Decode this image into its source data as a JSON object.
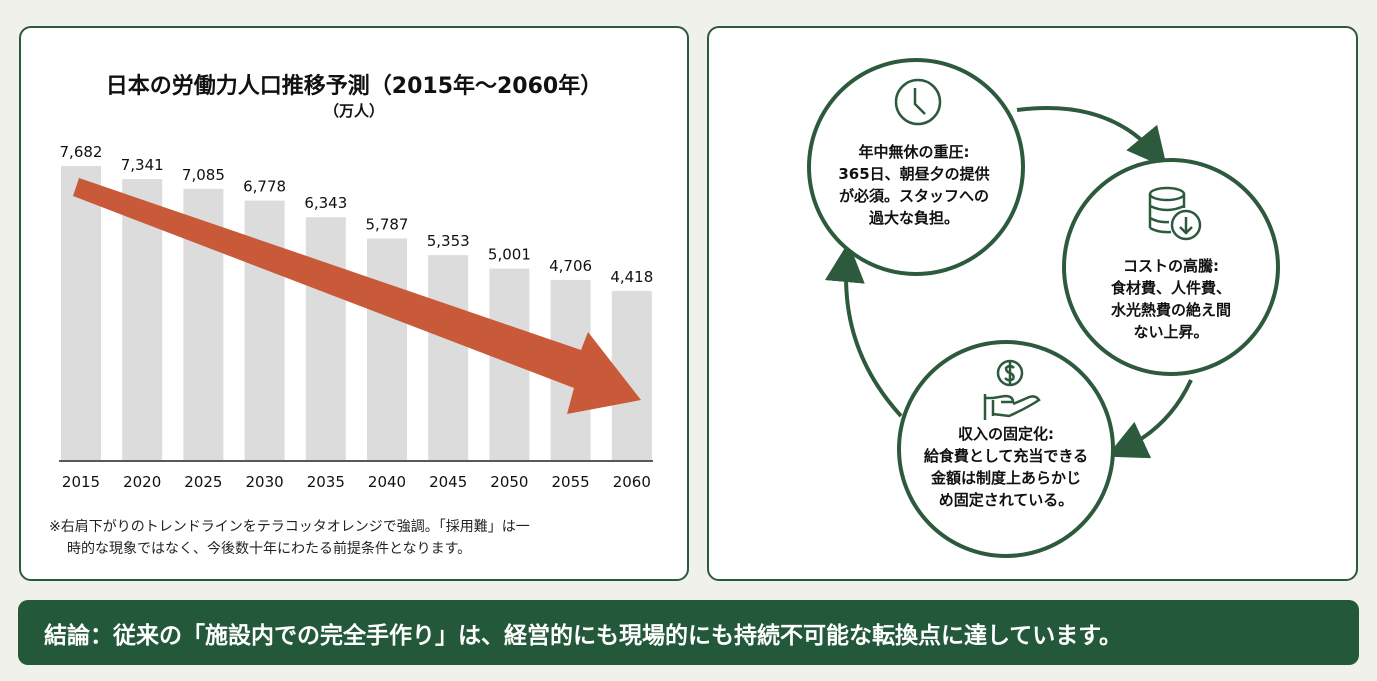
{
  "colors": {
    "accent_green": "#2d5a3d",
    "trend_orange": "#c85a3a",
    "bar_gray": "#dcdcdc",
    "banner": "#23583a"
  },
  "chart_data": {
    "type": "bar",
    "title": "日本の労働力人口推移予測（2015年〜2060年）",
    "subtitle": "（万人）",
    "categories": [
      "2015",
      "2020",
      "2025",
      "2030",
      "2035",
      "2040",
      "2045",
      "2050",
      "2055",
      "2060"
    ],
    "values": [
      7682,
      7341,
      7085,
      6778,
      6343,
      5787,
      5353,
      5001,
      4706,
      4418
    ],
    "data_labels": [
      "7,682",
      "7,341",
      "7,085",
      "6,778",
      "6,343",
      "5,787",
      "5,353",
      "5,001",
      "4,706",
      "4,418"
    ],
    "ylim": [
      0,
      7682
    ],
    "grid": false,
    "trend_arrow": "downward, terracotta orange"
  },
  "note": {
    "line1": "※右肩下がりのトレンドラインをテラコッタオレンジで強調。「採用難」は一",
    "line2": "時的な現象ではなく、今後数十年にわたる前提条件となります。"
  },
  "cycle": [
    {
      "icon": "clock-icon",
      "title": "年中無休の重圧:",
      "lines": [
        "365日、朝昼夕の提供",
        "が必須。スタッフへの",
        "過大な負担。"
      ]
    },
    {
      "icon": "database-down-icon",
      "title": "コストの高騰:",
      "lines": [
        "食材費、人件費、",
        "水光熱費の絶え間",
        "ない上昇。"
      ]
    },
    {
      "icon": "hand-coin-icon",
      "title": "収入の固定化:",
      "lines": [
        "給食費として充当できる",
        "金額は制度上あらかじ",
        "め固定されている。"
      ]
    }
  ],
  "conclusion": "結論：従来の「施設内での完全手作り」は、経営的にも現場的にも持続不可能な転換点に達しています。"
}
